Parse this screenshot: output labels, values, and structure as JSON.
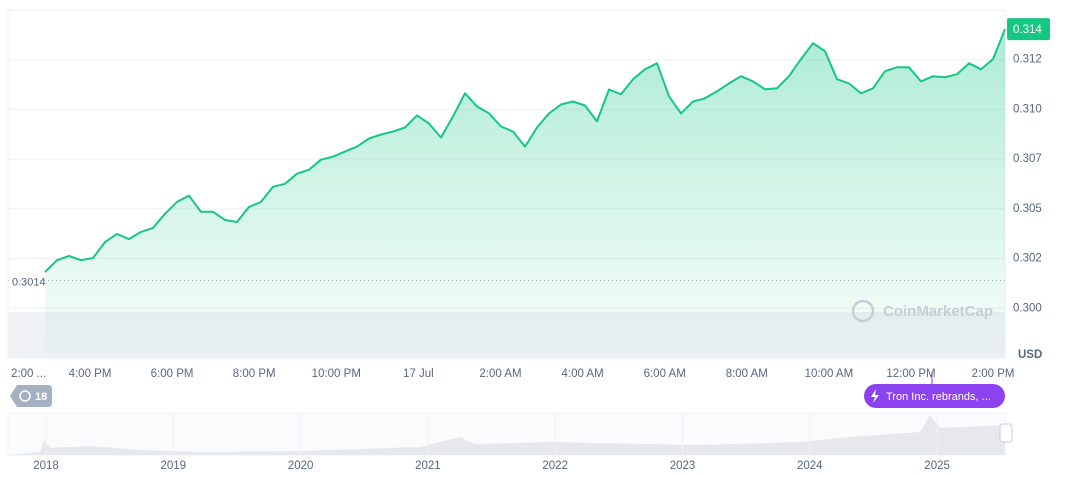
{
  "chart_data": {
    "type": "line",
    "color": "#16c784",
    "values": [
      0.30182,
      0.30242,
      0.30263,
      0.30242,
      0.30253,
      0.30333,
      0.30374,
      0.30348,
      0.30384,
      0.30404,
      0.30475,
      0.30535,
      0.30566,
      0.30485,
      0.30485,
      0.30444,
      0.30434,
      0.3051,
      0.30535,
      0.30611,
      0.30626,
      0.30677,
      0.30697,
      0.30747,
      0.30763,
      0.30788,
      0.30813,
      0.30854,
      0.30874,
      0.30889,
      0.30909,
      0.3097,
      0.30929,
      0.30859,
      0.30965,
      0.31081,
      0.31015,
      0.3098,
      0.30914,
      0.30889,
      0.30813,
      0.30909,
      0.3098,
      0.31025,
      0.3104,
      0.3102,
      0.3094,
      0.311,
      0.31076,
      0.31152,
      0.31202,
      0.31232,
      0.31066,
      0.3098,
      0.3104,
      0.31056,
      0.31091,
      0.31131,
      0.31167,
      0.31141,
      0.31101,
      0.31106,
      0.31167,
      0.31253,
      0.31333,
      0.31293,
      0.31152,
      0.31131,
      0.31081,
      0.31106,
      0.31192,
      0.31212,
      0.31212,
      0.31141,
      0.31167,
      0.31162,
      0.31177,
      0.31232,
      0.31202,
      0.31253,
      0.31404
    ],
    "ylim": [
      0.2975,
      0.315
    ],
    "yticks": [
      {
        "value": 0.3,
        "label": "0.300"
      },
      {
        "value": 0.3025,
        "label": "0.302"
      },
      {
        "value": 0.305,
        "label": "0.305"
      },
      {
        "value": 0.3075,
        "label": "0.307"
      },
      {
        "value": 0.31,
        "label": "0.310"
      },
      {
        "value": 0.3125,
        "label": "0.312"
      }
    ],
    "y_axis_label": "USD",
    "xtick_labels": [
      "2:00 ...",
      "4:00 PM",
      "6:00 PM",
      "8:00 PM",
      "10:00 PM",
      "17 Jul",
      "2:00 AM",
      "4:00 AM",
      "6:00 AM",
      "8:00 AM",
      "10:00 AM",
      "12:00 PM",
      "2:00 PM"
    ],
    "reference_line": 0.3014,
    "current_price_label": "0.314",
    "watermark": "CoinMarketCap",
    "badge": "18",
    "event_label": "Tron Inc. rebrands, ...",
    "navigator_years": [
      "2018",
      "2019",
      "2020",
      "2021",
      "2022",
      "2023",
      "2024",
      "2025"
    ],
    "grid": true
  }
}
